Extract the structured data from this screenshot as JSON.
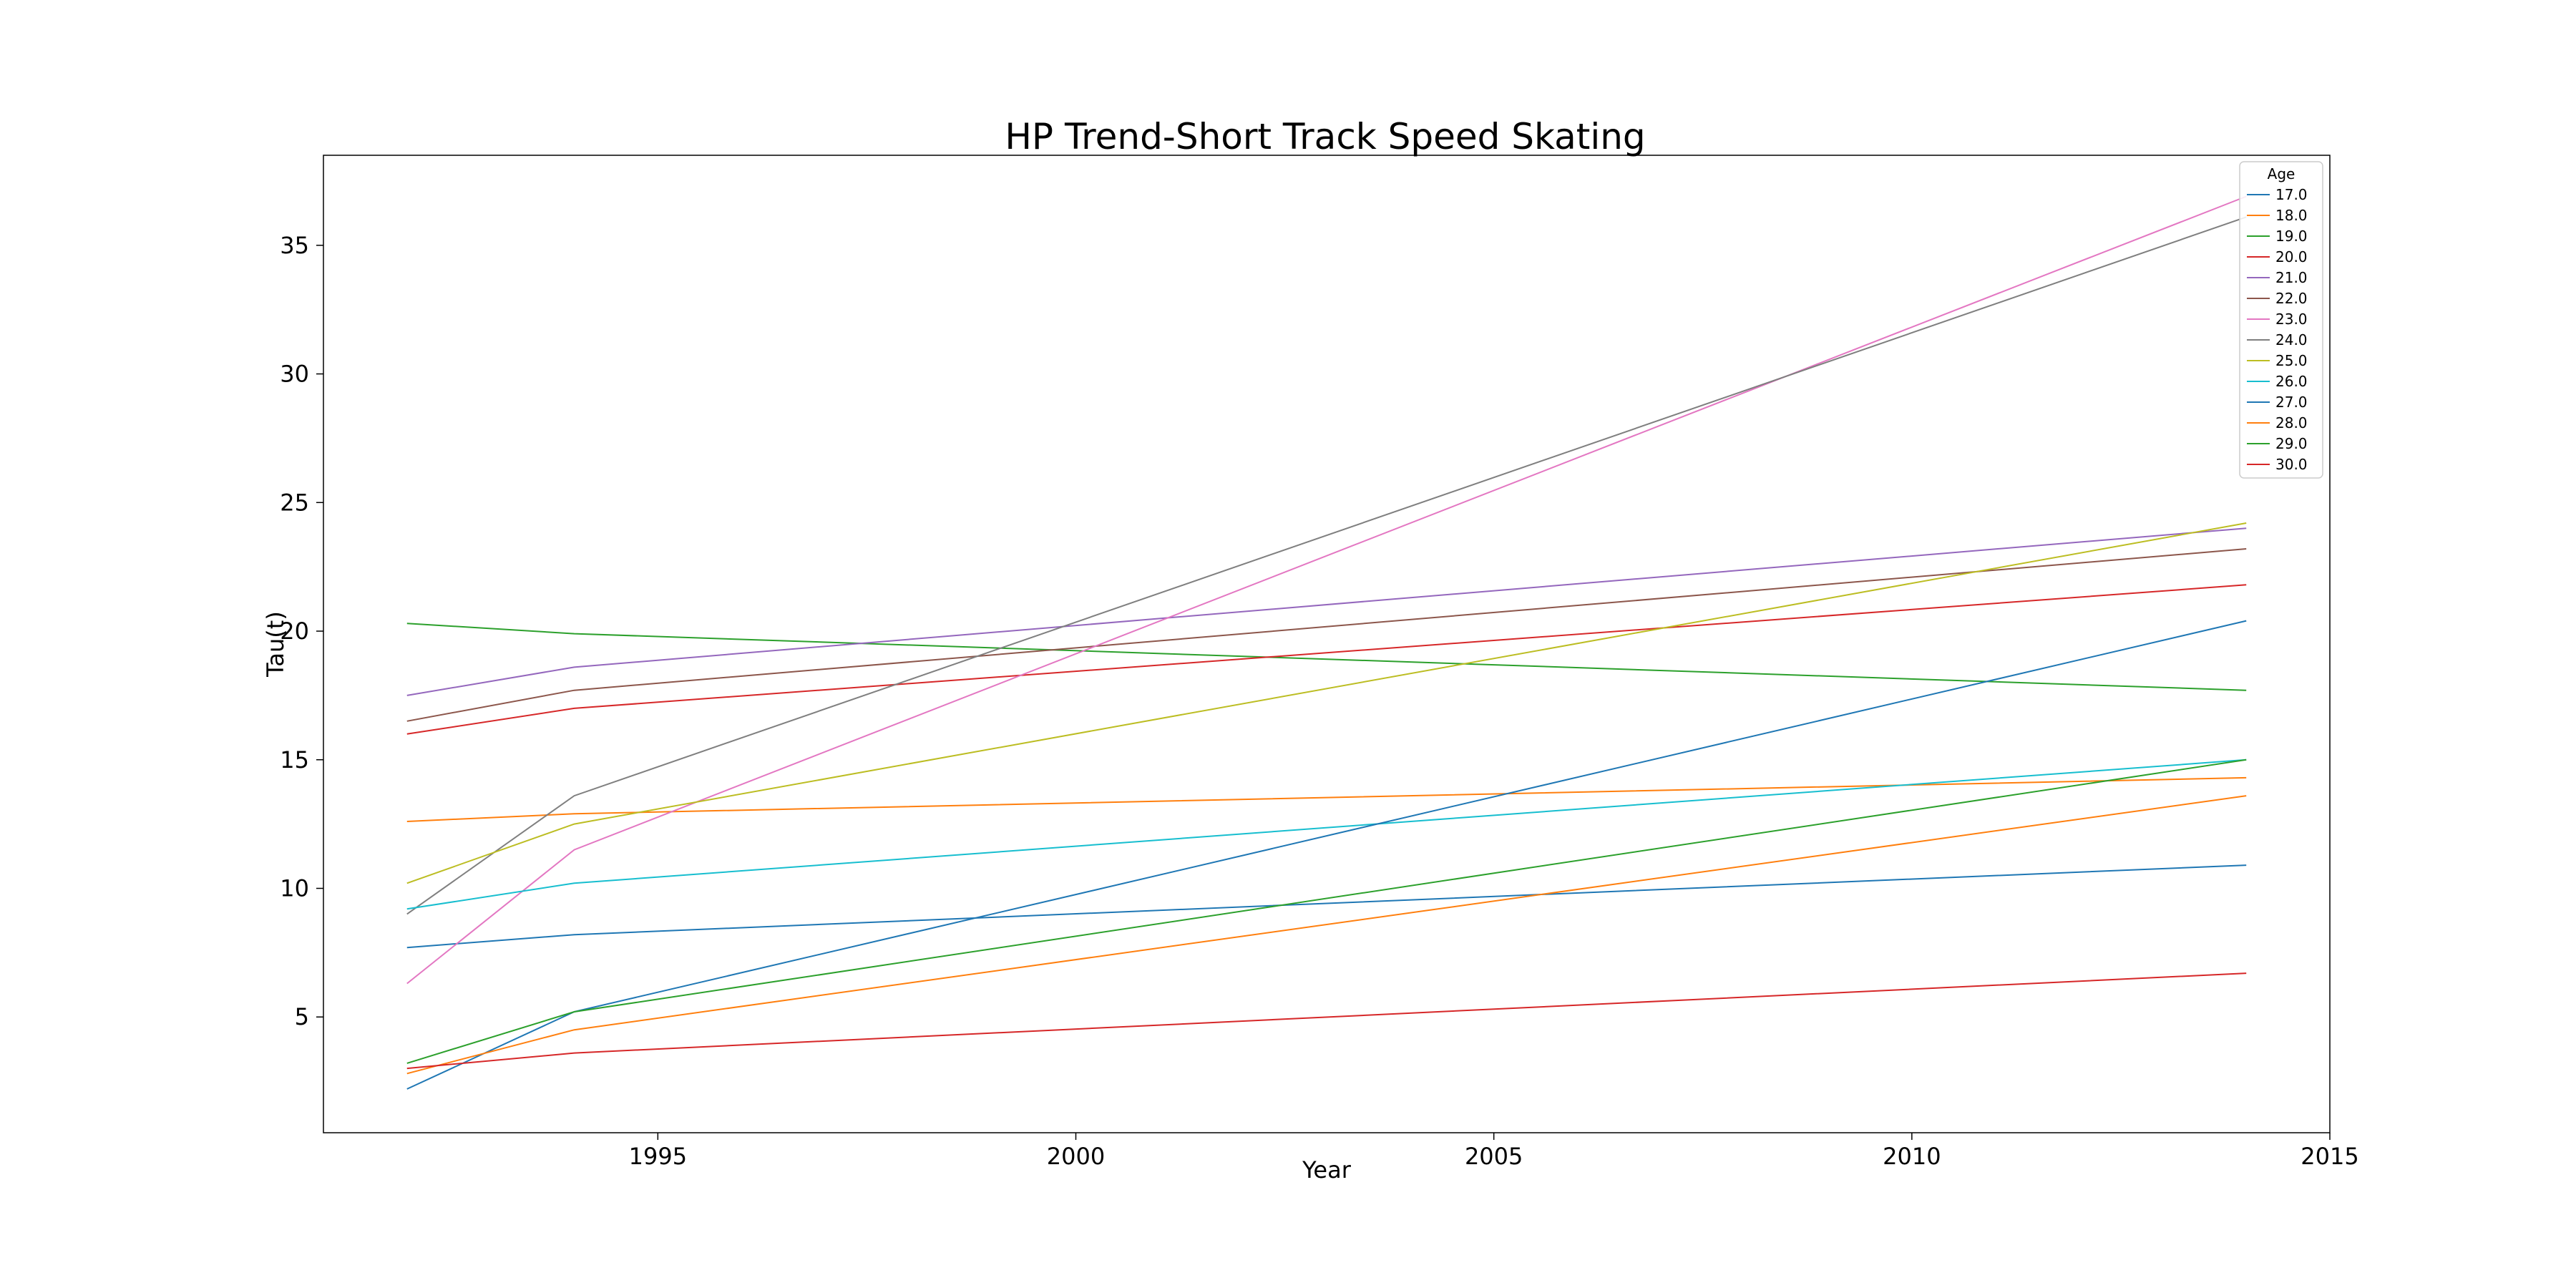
{
  "chart_data": {
    "type": "line",
    "title": "HP Trend-Short Track Speed Skating",
    "xlabel": "Year",
    "ylabel": "Tau(t)",
    "xlim": [
      1991,
      2015
    ],
    "ylim": [
      0.5,
      38.5
    ],
    "xticks": [
      1995,
      2000,
      2005,
      2010,
      2015
    ],
    "yticks": [
      5,
      10,
      15,
      20,
      25,
      30,
      35
    ],
    "grid": false,
    "legend": {
      "title": "Age",
      "position": "top-right"
    },
    "x": [
      1992,
      1994,
      2014
    ],
    "series": [
      {
        "name": "17.0",
        "color": "#1f77b4",
        "values": [
          7.7,
          8.2,
          10.9
        ]
      },
      {
        "name": "18.0",
        "color": "#ff7f0e",
        "values": [
          12.6,
          12.9,
          14.3
        ]
      },
      {
        "name": "19.0",
        "color": "#2ca02c",
        "values": [
          20.3,
          19.9,
          17.7
        ]
      },
      {
        "name": "20.0",
        "color": "#d62728",
        "values": [
          16.0,
          17.0,
          21.8
        ]
      },
      {
        "name": "21.0",
        "color": "#9467bd",
        "values": [
          17.5,
          18.6,
          24.0
        ]
      },
      {
        "name": "22.0",
        "color": "#8c564b",
        "values": [
          16.5,
          17.7,
          23.2
        ]
      },
      {
        "name": "23.0",
        "color": "#e377c2",
        "values": [
          6.3,
          11.5,
          36.9
        ]
      },
      {
        "name": "24.0",
        "color": "#7f7f7f",
        "values": [
          9.0,
          13.6,
          36.1
        ]
      },
      {
        "name": "25.0",
        "color": "#bcbd22",
        "values": [
          10.2,
          12.5,
          24.2
        ]
      },
      {
        "name": "26.0",
        "color": "#17becf",
        "values": [
          9.2,
          10.2,
          15.0
        ]
      },
      {
        "name": "27.0",
        "color": "#1f77b4",
        "values": [
          2.2,
          5.2,
          20.4
        ]
      },
      {
        "name": "28.0",
        "color": "#ff7f0e",
        "values": [
          2.8,
          4.5,
          13.6
        ]
      },
      {
        "name": "29.0",
        "color": "#2ca02c",
        "values": [
          3.2,
          5.2,
          15.0
        ]
      },
      {
        "name": "30.0",
        "color": "#d62728",
        "values": [
          3.0,
          3.6,
          6.7
        ]
      }
    ]
  }
}
